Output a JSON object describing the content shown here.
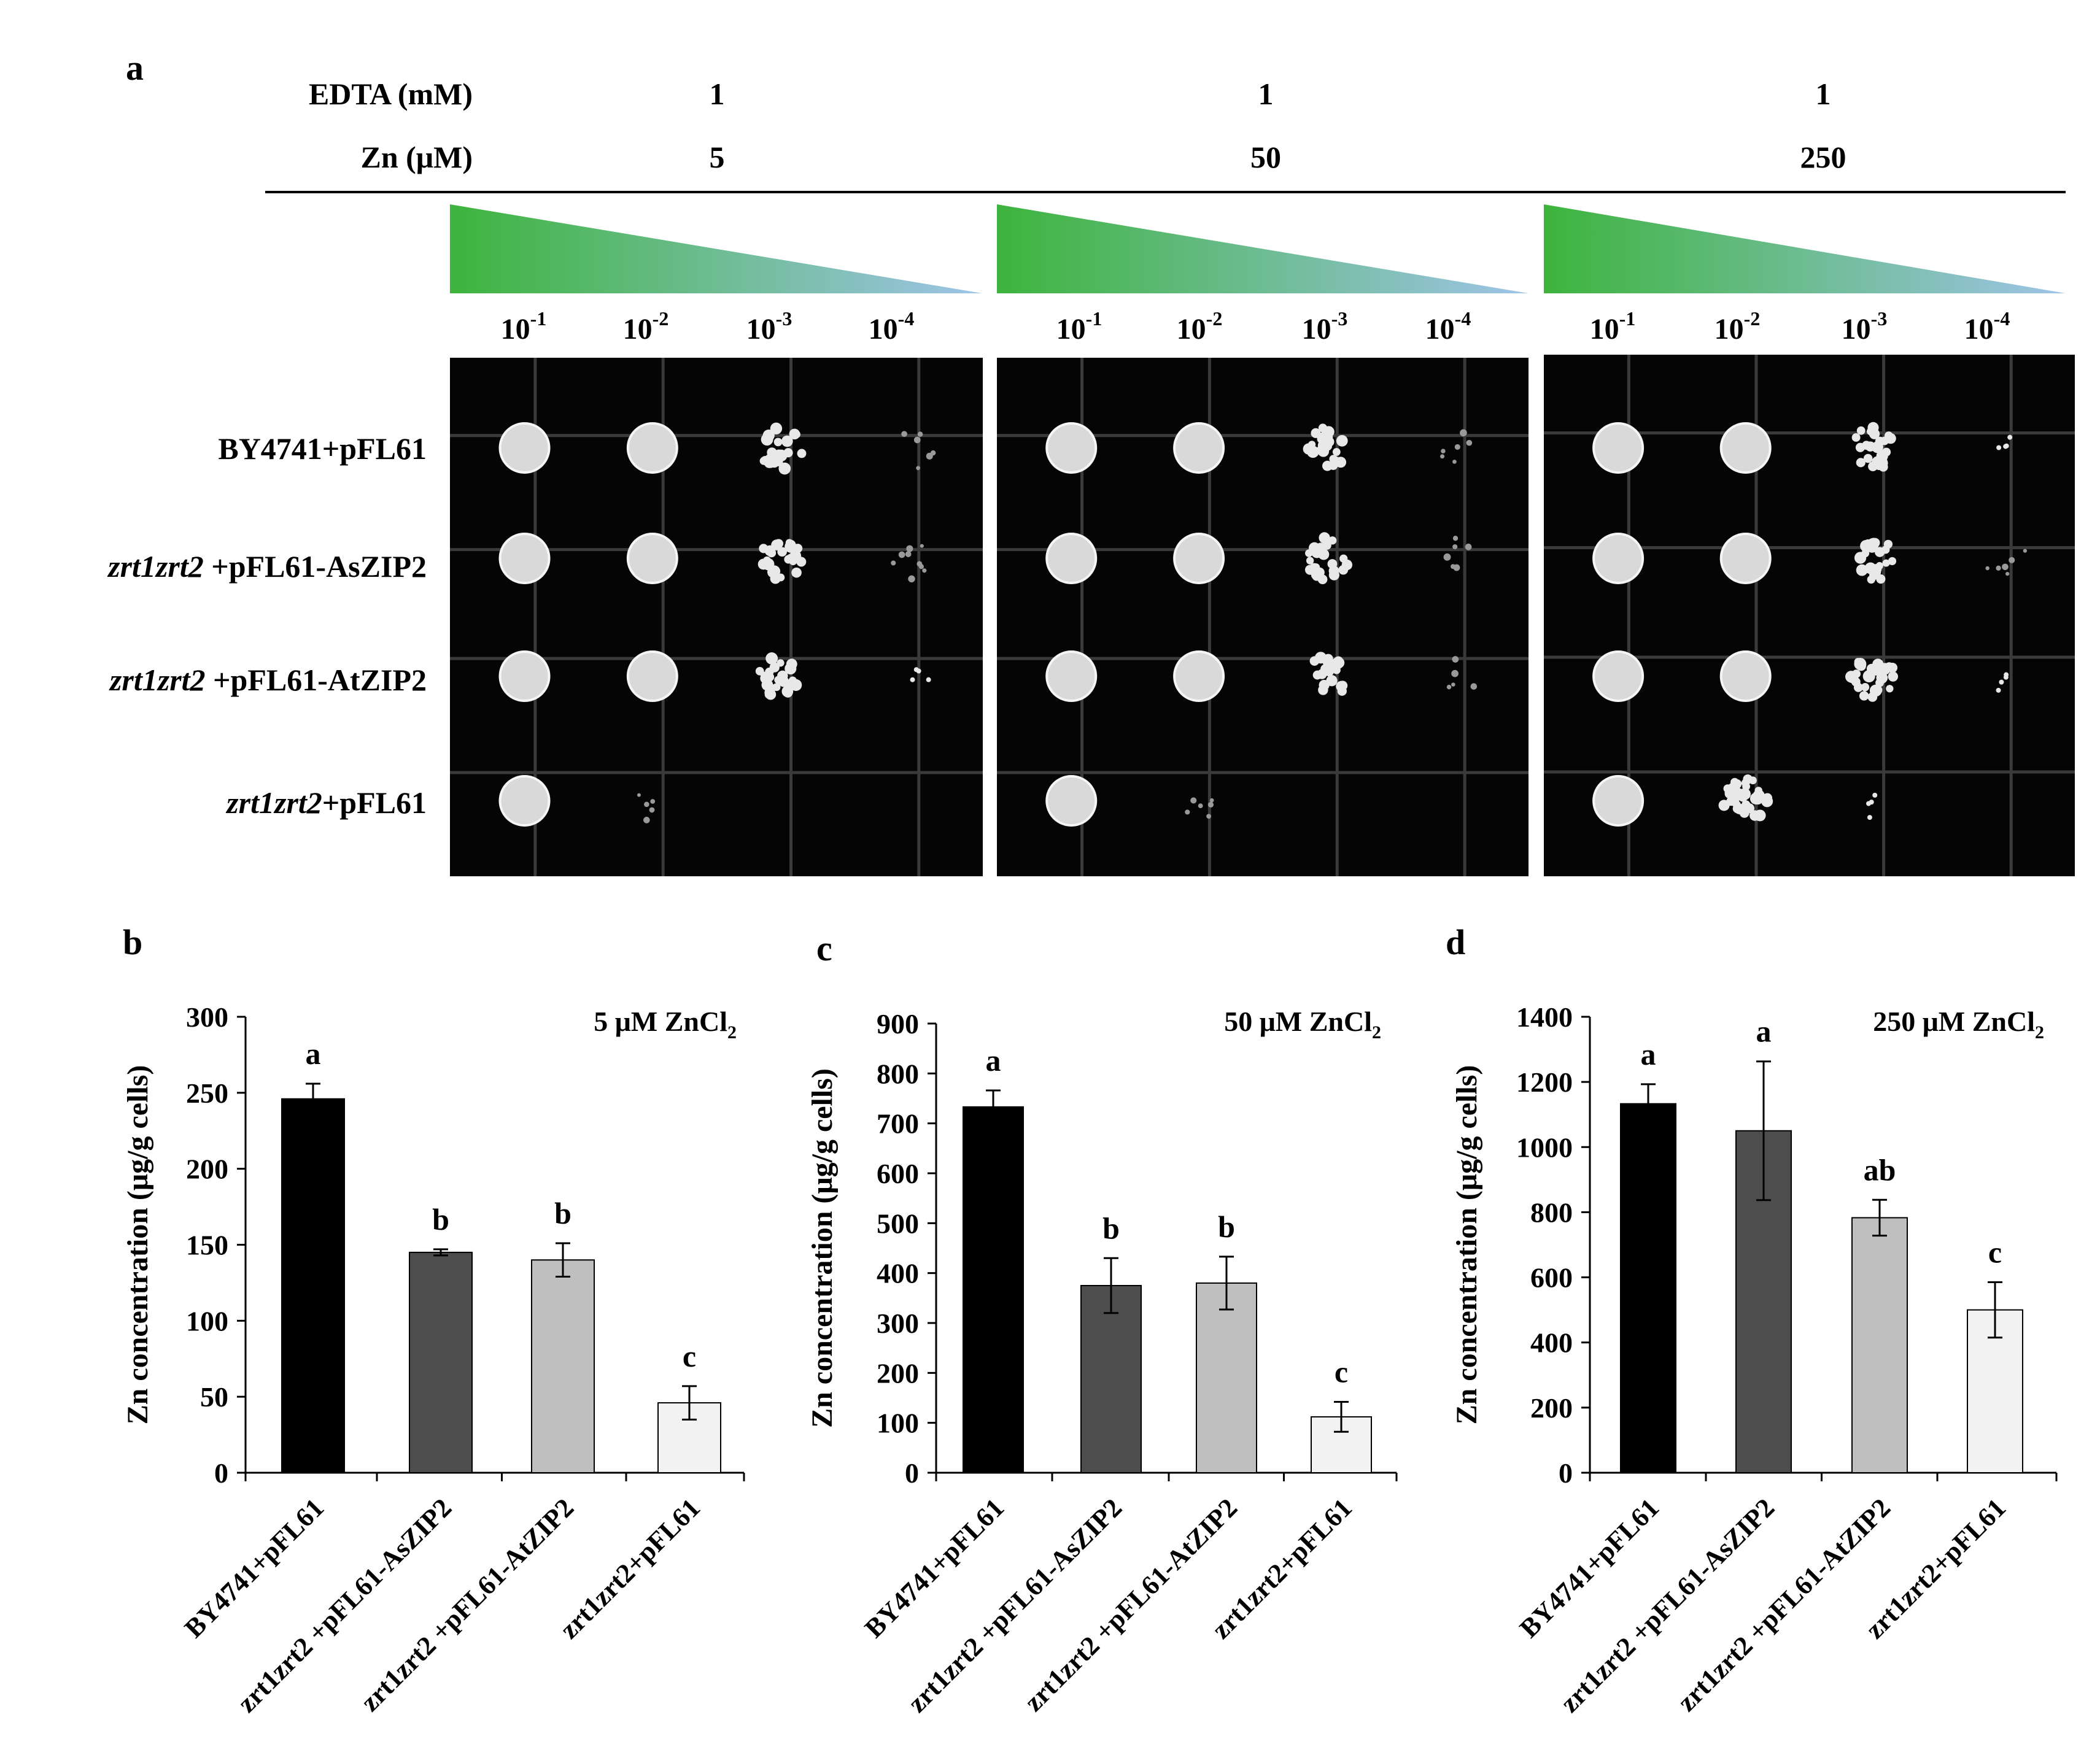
{
  "panel_a": {
    "letter": "a",
    "edta_label": "EDTA (mM)",
    "zn_label": "Zn (μM)",
    "conditions": [
      {
        "edta": "1",
        "zn": "5"
      },
      {
        "edta": "1",
        "zn": "50"
      },
      {
        "edta": "1",
        "zn": "250"
      }
    ],
    "dilution_base": "10",
    "dilution_exps": [
      "-1",
      "-2",
      "-3",
      "-4"
    ],
    "rows": [
      {
        "italic": "",
        "plain": "BY4741+pFL61"
      },
      {
        "italic": "zrt1zrt2",
        "plain": " +pFL61-AsZIP2"
      },
      {
        "italic": "zrt1zrt2",
        "plain": " +pFL61-AtZIP2"
      },
      {
        "italic": "zrt1zrt2",
        "plain": "+pFL61"
      }
    ],
    "growth_levels": [
      [
        [
          1.0,
          0.9,
          0.6,
          0.2
        ],
        [
          1.0,
          0.9,
          0.7,
          0.3
        ],
        [
          1.0,
          0.9,
          0.6,
          0.1
        ],
        [
          0.9,
          0.15,
          0.0,
          0.0
        ]
      ],
      [
        [
          1.0,
          0.9,
          0.6,
          0.2
        ],
        [
          1.0,
          0.9,
          0.6,
          0.2
        ],
        [
          1.0,
          0.9,
          0.5,
          0.15
        ],
        [
          0.9,
          0.2,
          0.0,
          0.0
        ]
      ],
      [
        [
          1.0,
          0.9,
          0.6,
          0.1
        ],
        [
          1.0,
          0.9,
          0.6,
          0.2
        ],
        [
          1.0,
          0.9,
          0.6,
          0.1
        ],
        [
          1.0,
          0.8,
          0.1,
          0.0
        ]
      ]
    ],
    "gradient_colors": [
      "#3db43d",
      "#9ec4e8"
    ]
  },
  "chart_data": [
    {
      "panel": "b",
      "type": "bar",
      "title": "5 μM ZnCl",
      "title_sub": "2",
      "ylabel": "Zn concentration (μg/g cells)",
      "ylim": [
        0,
        300
      ],
      "yticks": [
        0,
        50,
        100,
        150,
        200,
        250,
        300
      ],
      "categories": [
        "BY4741+pFL61",
        "zrt1zrt2 +pFL61-AsZIP2",
        "zrt1zrt2 +pFL61-AtZIP2",
        "zrt1zrt2+pFL61"
      ],
      "values": [
        246,
        145,
        140,
        46
      ],
      "errors": [
        10,
        2,
        11,
        11
      ],
      "letters": [
        "a",
        "b",
        "b",
        "c"
      ],
      "colors": [
        "#000000",
        "#4d4d4d",
        "#bfbfbf",
        "#f2f2f2"
      ]
    },
    {
      "panel": "c",
      "type": "bar",
      "title": "50 μM ZnCl",
      "title_sub": "2",
      "ylabel": "Zn concentration (μg/g cells)",
      "ylim": [
        0,
        900
      ],
      "yticks": [
        0,
        100,
        200,
        300,
        400,
        500,
        600,
        700,
        800,
        900
      ],
      "categories": [
        "BY4741+pFL61",
        "zrt1zrt2 +pFL61-AsZIP2",
        "zrt1zrt2 +pFL61-AtZIP2",
        "zrt1zrt2+pFL61"
      ],
      "values": [
        733,
        375,
        380,
        112
      ],
      "errors": [
        33,
        55,
        53,
        30
      ],
      "letters": [
        "a",
        "b",
        "b",
        "c"
      ],
      "colors": [
        "#000000",
        "#4d4d4d",
        "#bfbfbf",
        "#f2f2f2"
      ]
    },
    {
      "panel": "d",
      "type": "bar",
      "title": "250 μM ZnCl",
      "title_sub": "2",
      "ylabel": "Zn concentration (μg/g cells)",
      "ylim": [
        0,
        1400
      ],
      "yticks": [
        0,
        200,
        400,
        600,
        800,
        1000,
        1200,
        1400
      ],
      "categories": [
        "BY4741+pFL61",
        "zrt1zrt2 +pFL61-AsZIP2",
        "zrt1zrt2 +pFL61-AtZIP2",
        "zrt1zrt2+pFL61"
      ],
      "values": [
        1133,
        1050,
        783,
        500
      ],
      "errors": [
        60,
        213,
        55,
        85
      ],
      "letters": [
        "a",
        "a",
        "ab",
        "c"
      ],
      "colors": [
        "#000000",
        "#4d4d4d",
        "#bfbfbf",
        "#f2f2f2"
      ]
    }
  ]
}
